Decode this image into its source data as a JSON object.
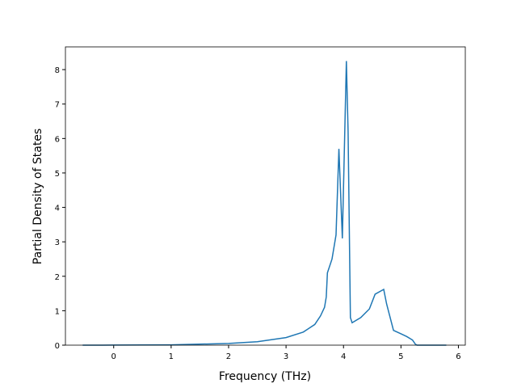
{
  "chart_data": {
    "type": "line",
    "x_label": "Frequency (THz)",
    "y_label": "Partial Density of States",
    "x": [
      -0.54,
      0,
      1,
      2,
      2.5,
      3,
      3.3,
      3.5,
      3.6,
      3.67,
      3.7,
      3.72,
      3.8,
      3.87,
      3.92,
      3.98,
      4.05,
      4.08,
      4.12,
      4.15,
      4.3,
      4.45,
      4.55,
      4.7,
      4.75,
      4.87,
      5.0,
      5.1,
      5.2,
      5.25,
      5.28,
      5.79
    ],
    "values": [
      0,
      0.002,
      0.01,
      0.05,
      0.1,
      0.22,
      0.38,
      0.6,
      0.85,
      1.1,
      1.4,
      2.1,
      2.5,
      3.2,
      5.7,
      3.1,
      8.25,
      6.2,
      0.8,
      0.65,
      0.8,
      1.05,
      1.48,
      1.62,
      1.2,
      0.43,
      0.33,
      0.25,
      0.15,
      0.03,
      0,
      0
    ],
    "color": "#1f77b4",
    "xlim": [
      -0.84,
      6.12
    ],
    "xticks": [
      0,
      1,
      2,
      3,
      4,
      5,
      6
    ],
    "ylim": [
      0,
      8.66
    ],
    "yticks": [
      0,
      1,
      2,
      3,
      4,
      5,
      6,
      7,
      8
    ]
  }
}
